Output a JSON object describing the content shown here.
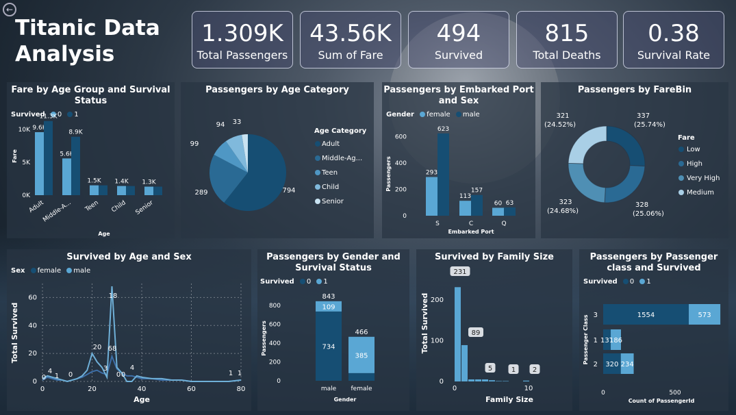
{
  "header": {
    "title_line1": "Titanic Data",
    "title_line2": "Analysis"
  },
  "kpis": [
    {
      "value": "1.309K",
      "label": "Total Passengers"
    },
    {
      "value": "43.56K",
      "label": "Sum of Fare"
    },
    {
      "value": "494",
      "label": "Survived"
    },
    {
      "value": "815",
      "label": "Total Deaths"
    },
    {
      "value": "0.38",
      "label": "Survival Rate"
    }
  ],
  "colors": {
    "dark": "#164e73",
    "light": "#5aa7d4",
    "mid": "#3c7ea6",
    "pale": "#a9cfe6"
  },
  "chart_data": [
    {
      "type": "bar",
      "title": "Fare by Age Group and Survival Status",
      "legend_title": "Survived",
      "categories": [
        "Adult",
        "Middle-A...",
        "Teen",
        "Child",
        "Senior"
      ],
      "series": [
        {
          "name": "0",
          "values": [
            9600,
            5600,
            1500,
            1400,
            1300
          ],
          "labels": [
            "9.6K",
            "5.6K",
            "1.5K",
            "1.4K",
            "1.3K"
          ]
        },
        {
          "name": "1",
          "values": [
            11300,
            8900,
            1500,
            1400,
            1300
          ],
          "labels": [
            "11.3K",
            "8.9K",
            "",
            "",
            ""
          ]
        }
      ],
      "yticks": [
        "0K",
        "5K",
        "10K"
      ],
      "ylabel": "Fare",
      "xlabel": "Age",
      "ylim": [
        0,
        12000
      ]
    },
    {
      "type": "pie",
      "title": "Passengers by Age Category",
      "legend_title": "Age Category",
      "categories": [
        "Adult",
        "Middle-Ag...",
        "Teen",
        "Child",
        "Senior"
      ],
      "values": [
        794,
        289,
        99,
        94,
        33
      ]
    },
    {
      "type": "bar",
      "title": "Passengers by Embarked Port and Sex",
      "legend_title": "Gender",
      "categories": [
        "S",
        "C",
        "Q"
      ],
      "series": [
        {
          "name": "female",
          "values": [
            293,
            113,
            60
          ]
        },
        {
          "name": "male",
          "values": [
            623,
            157,
            63
          ]
        }
      ],
      "yticks": [
        "0",
        "200",
        "400",
        "600"
      ],
      "ylabel": "Passengers",
      "xlabel": "Embarked Port",
      "ylim": [
        0,
        700
      ]
    },
    {
      "type": "pie",
      "title": "Passengers by FareBin",
      "legend_title": "Fare",
      "categories": [
        "Low",
        "High",
        "Very High",
        "Medium"
      ],
      "values": [
        337,
        328,
        323,
        321
      ],
      "labels": [
        "337\n(25.74%)",
        "328\n(25.06%)",
        "323\n(24.68%)",
        "321\n(24.52%)"
      ]
    },
    {
      "type": "line",
      "title": "Survived by Age and Sex",
      "legend_title": "Sex",
      "series": [
        {
          "name": "female",
          "x": [
            0,
            2,
            4,
            6,
            8,
            10,
            12,
            14,
            16,
            18,
            20,
            22,
            24,
            26,
            28,
            30,
            32,
            34,
            36,
            38,
            40,
            44,
            48,
            52,
            56,
            60,
            65,
            70,
            75,
            80
          ],
          "y": [
            1,
            3,
            2,
            1,
            1,
            0,
            1,
            2,
            3,
            5,
            7,
            8,
            6,
            5,
            18,
            9,
            6,
            4,
            4,
            3,
            2,
            2,
            1,
            1,
            1,
            0,
            0,
            0,
            0,
            1
          ]
        },
        {
          "name": "male",
          "x": [
            0,
            2,
            4,
            6,
            8,
            10,
            12,
            14,
            16,
            18,
            20,
            22,
            24,
            26,
            28,
            30,
            32,
            34,
            36,
            38,
            40,
            44,
            48,
            52,
            56,
            60,
            65,
            70,
            75,
            80
          ],
          "y": [
            2,
            4,
            3,
            2,
            1,
            0,
            1,
            2,
            4,
            8,
            20,
            14,
            10,
            3,
            68,
            10,
            6,
            0,
            0,
            4,
            3,
            2,
            2,
            1,
            1,
            0,
            0,
            0,
            0,
            1
          ]
        }
      ],
      "annotations": [
        "0",
        "4",
        "1",
        "0",
        "20",
        "3",
        "18",
        "68",
        "0",
        "0",
        "4",
        "1",
        "1"
      ],
      "xticks": [
        "0",
        "20",
        "40",
        "60",
        "80"
      ],
      "yticks": [
        "0",
        "20",
        "40",
        "60"
      ],
      "ylabel": "Total Survived",
      "xlabel": "Age",
      "xlim": [
        0,
        80
      ],
      "ylim": [
        0,
        70
      ]
    },
    {
      "type": "bar",
      "title": "Passengers by Gender and Survival Status",
      "legend_title": "Survived",
      "categories": [
        "male",
        "female"
      ],
      "series": [
        {
          "name": "0",
          "values": [
            734,
            81
          ],
          "labels": [
            "734",
            ""
          ]
        },
        {
          "name": "1",
          "values": [
            109,
            385
          ],
          "labels": [
            "109",
            "385"
          ]
        }
      ],
      "totals": [
        "843",
        "466"
      ],
      "yticks": [
        "0",
        "200",
        "400",
        "600",
        "800"
      ],
      "ylabel": "Passengers",
      "xlabel": "Gender",
      "ylim": [
        0,
        900
      ]
    },
    {
      "type": "bar",
      "title": "Survived by Family Size",
      "x": [
        1,
        2,
        3,
        4,
        5,
        6,
        7,
        8,
        9,
        10,
        11,
        12
      ],
      "values": [
        231,
        89,
        5,
        5,
        5,
        3,
        1,
        1,
        0,
        0,
        2,
        0
      ],
      "labels": [
        "231",
        "89",
        "5",
        "1",
        "2"
      ],
      "xticks": [
        "0",
        "10"
      ],
      "yticks": [
        "0",
        "100",
        "200"
      ],
      "ylabel": "Total Survived",
      "xlabel": "Family Size",
      "ylim": [
        0,
        250
      ]
    },
    {
      "type": "bar",
      "title": "Passengers by Passenger class and Survived",
      "legend_title": "Survived",
      "categories": [
        "3",
        "1",
        "2"
      ],
      "series": [
        {
          "name": "0",
          "values": [
            1554,
            137,
            320
          ]
        },
        {
          "name": "1",
          "values": [
            573,
            186,
            234
          ]
        }
      ],
      "xticks": [
        "0",
        "500"
      ],
      "ylabel": "Passenger Class",
      "xlabel": "Count of PassengerId",
      "xlim": [
        0,
        2200
      ]
    }
  ]
}
